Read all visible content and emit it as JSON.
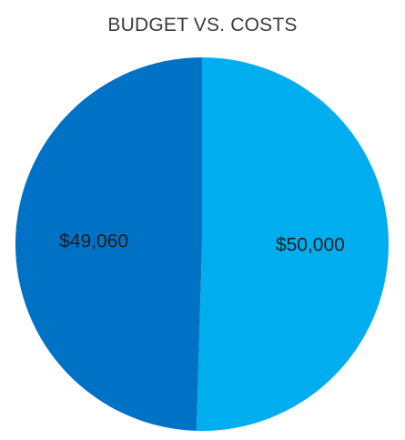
{
  "chart_data": {
    "type": "pie",
    "title": "BUDGET VS. COSTS",
    "slices": [
      {
        "label": "$50,000",
        "value": 50000,
        "color": "#00AEEF"
      },
      {
        "label": "$49,060",
        "value": 49060,
        "color": "#0072C6"
      }
    ],
    "start": "top",
    "direction": "clockwise",
    "legend": "none"
  }
}
